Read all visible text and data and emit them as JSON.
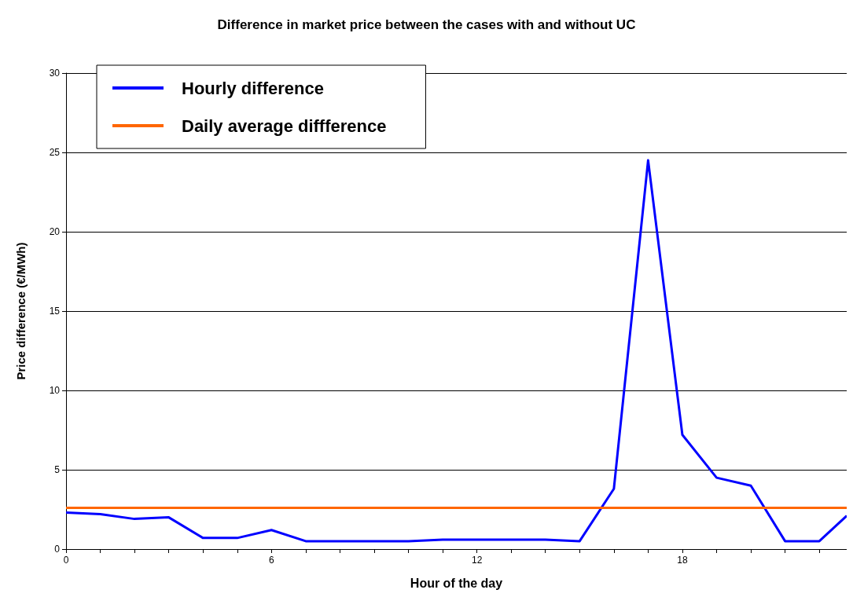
{
  "chart_data": {
    "type": "line",
    "title": "Difference in market price between the cases with and without UC",
    "xlabel": "Hour of the day",
    "ylabel": "Price difference (€/MWh)",
    "xlim": [
      0,
      22.8
    ],
    "xticks": [
      0,
      {
        "value": 1,
        "label": null
      },
      {
        "value": 2,
        "label": null
      },
      {
        "value": 3,
        "label": null
      },
      {
        "value": 4,
        "label": null
      },
      {
        "value": 5,
        "label": null
      },
      6,
      {
        "value": 7,
        "label": null
      },
      {
        "value": 8,
        "label": null
      },
      {
        "value": 9,
        "label": null
      },
      {
        "value": 10,
        "label": null
      },
      {
        "value": 11,
        "label": null
      },
      12,
      {
        "value": 13,
        "label": null
      },
      {
        "value": 14,
        "label": null
      },
      {
        "value": 15,
        "label": null
      },
      {
        "value": 16,
        "label": null
      },
      {
        "value": 17,
        "label": null
      },
      18,
      {
        "value": 19,
        "label": null
      },
      {
        "value": 20,
        "label": null
      },
      {
        "value": 21,
        "label": null
      },
      {
        "value": 22,
        "label": null
      }
    ],
    "ylim": [
      0,
      30
    ],
    "yticks": [
      0,
      5,
      10,
      15,
      20,
      25,
      30
    ],
    "grid": "y",
    "legend": "top left",
    "marker": "none",
    "line_style": "solid",
    "series": [
      {
        "name": "Hourly difference",
        "color": "#0000ff",
        "x": [
          0,
          1,
          2,
          3,
          4,
          5,
          6,
          7,
          8,
          9,
          10,
          11,
          12,
          13,
          14,
          15,
          16,
          17,
          18,
          19,
          20,
          21,
          22,
          22.8
        ],
        "values": [
          2.3,
          2.2,
          1.9,
          2.0,
          0.7,
          0.7,
          1.2,
          0.5,
          0.5,
          0.5,
          0.5,
          0.6,
          0.6,
          0.6,
          0.6,
          0.5,
          3.8,
          24.5,
          7.2,
          4.5,
          4.0,
          0.5,
          0.5,
          2.1
        ]
      },
      {
        "name": "Daily average diffference",
        "color": "#ff6600",
        "x": [
          0,
          22.8
        ],
        "values": [
          2.6,
          2.6
        ]
      }
    ]
  }
}
